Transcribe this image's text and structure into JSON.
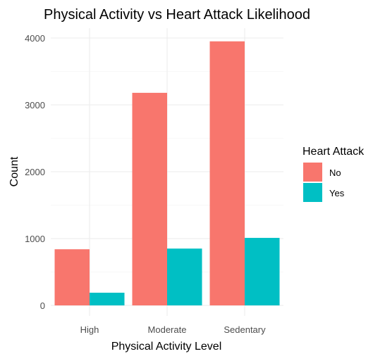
{
  "chart_data": {
    "type": "bar",
    "title": "Physical Activity vs Heart Attack Likelihood",
    "xlabel": "Physical Activity Level",
    "ylabel": "Count",
    "categories": [
      "High",
      "Moderate",
      "Sedentary"
    ],
    "series": [
      {
        "name": "No",
        "color": "#F8766D",
        "values": [
          840,
          3180,
          3950
        ]
      },
      {
        "name": "Yes",
        "color": "#00BFC4",
        "values": [
          190,
          850,
          1010
        ]
      }
    ],
    "ylim": [
      0,
      4150
    ],
    "yticks": [
      0,
      1000,
      2000,
      3000,
      4000
    ],
    "ytick_labels": [
      "0",
      "1000",
      "2000",
      "3000",
      "4000"
    ],
    "grid": true,
    "legend": {
      "title": "Heart Attack",
      "position": "right",
      "entries": [
        "No",
        "Yes"
      ]
    }
  }
}
